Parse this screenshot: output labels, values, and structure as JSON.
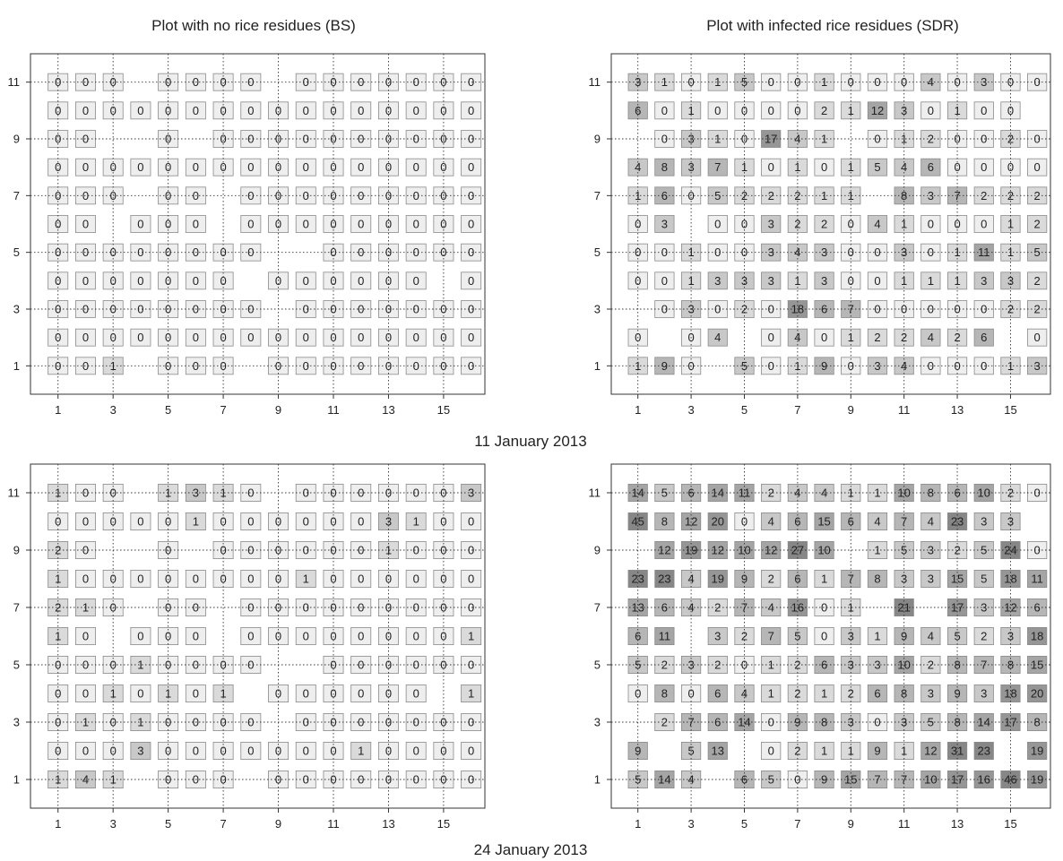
{
  "figure": {
    "titles": [
      "Plot with no rice residues (BS)",
      "Plot with infected rice residues (SDR)"
    ],
    "dates": [
      "11 January 2013",
      "24 January 2013"
    ]
  },
  "chart_data": [
    {
      "type": "heatmap",
      "title": "Plot with no rice residues (BS)",
      "date": "11 January 2013",
      "x_ticks": [
        1,
        3,
        5,
        7,
        9,
        11,
        13,
        15
      ],
      "y_ticks": [
        1,
        3,
        5,
        7,
        9,
        11
      ],
      "xlim": [
        0,
        16.5
      ],
      "ylim": [
        0,
        12
      ],
      "grid": "dotted lines at odd x and odd y",
      "cells": [
        {
          "y": 11,
          "values": [
            0,
            0,
            0,
            null,
            0,
            0,
            0,
            0,
            null,
            0,
            0,
            0,
            0,
            0,
            0,
            0
          ]
        },
        {
          "y": 10,
          "values": [
            0,
            0,
            0,
            0,
            0,
            0,
            0,
            0,
            0,
            0,
            0,
            0,
            0,
            0,
            0,
            0
          ]
        },
        {
          "y": 9,
          "values": [
            0,
            0,
            null,
            null,
            0,
            null,
            0,
            0,
            0,
            0,
            0,
            0,
            0,
            0,
            0,
            0
          ]
        },
        {
          "y": 8,
          "values": [
            0,
            0,
            0,
            0,
            0,
            0,
            0,
            0,
            0,
            0,
            0,
            0,
            0,
            0,
            0,
            0
          ]
        },
        {
          "y": 7,
          "values": [
            0,
            0,
            0,
            null,
            0,
            0,
            null,
            0,
            0,
            0,
            0,
            0,
            0,
            0,
            0,
            0
          ]
        },
        {
          "y": 6,
          "values": [
            0,
            0,
            null,
            0,
            0,
            0,
            null,
            0,
            0,
            0,
            0,
            0,
            0,
            0,
            0,
            0
          ]
        },
        {
          "y": 5,
          "values": [
            0,
            0,
            0,
            0,
            0,
            0,
            0,
            0,
            null,
            null,
            0,
            0,
            0,
            0,
            0,
            0
          ]
        },
        {
          "y": 4,
          "values": [
            0,
            0,
            0,
            0,
            0,
            0,
            0,
            null,
            0,
            0,
            0,
            0,
            0,
            0,
            null,
            0
          ]
        },
        {
          "y": 3,
          "values": [
            0,
            0,
            0,
            0,
            0,
            0,
            0,
            0,
            null,
            0,
            0,
            0,
            0,
            0,
            0,
            0
          ]
        },
        {
          "y": 2,
          "values": [
            0,
            0,
            0,
            0,
            0,
            0,
            0,
            0,
            0,
            0,
            0,
            0,
            0,
            0,
            0,
            0
          ]
        },
        {
          "y": 1,
          "values": [
            0,
            0,
            1,
            null,
            0,
            0,
            0,
            null,
            0,
            0,
            0,
            0,
            0,
            0,
            0,
            0
          ]
        }
      ]
    },
    {
      "type": "heatmap",
      "title": "Plot with infected rice residues (SDR)",
      "date": "11 January 2013",
      "x_ticks": [
        1,
        3,
        5,
        7,
        9,
        11,
        13,
        15
      ],
      "y_ticks": [
        1,
        3,
        5,
        7,
        9,
        11
      ],
      "xlim": [
        0,
        16.5
      ],
      "ylim": [
        0,
        12
      ],
      "grid": "dotted lines at odd x and odd y",
      "cells": [
        {
          "y": 11,
          "values": [
            3,
            1,
            0,
            1,
            5,
            0,
            0,
            1,
            0,
            0,
            0,
            4,
            0,
            3,
            0,
            0
          ]
        },
        {
          "y": 10,
          "values": [
            6,
            0,
            1,
            0,
            0,
            0,
            0,
            2,
            1,
            12,
            3,
            0,
            1,
            0,
            0,
            null
          ]
        },
        {
          "y": 9,
          "values": [
            null,
            0,
            3,
            1,
            0,
            17,
            4,
            1,
            null,
            0,
            1,
            2,
            0,
            0,
            2,
            0
          ]
        },
        {
          "y": 8,
          "values": [
            4,
            8,
            3,
            7,
            1,
            0,
            1,
            0,
            1,
            5,
            4,
            6,
            0,
            0,
            0,
            0
          ]
        },
        {
          "y": 7,
          "values": [
            1,
            6,
            0,
            5,
            2,
            2,
            2,
            1,
            1,
            null,
            8,
            3,
            7,
            2,
            2,
            2
          ]
        },
        {
          "y": 6,
          "values": [
            0,
            3,
            null,
            0,
            0,
            3,
            2,
            2,
            0,
            4,
            1,
            0,
            0,
            0,
            1,
            2
          ]
        },
        {
          "y": 5,
          "values": [
            0,
            0,
            1,
            0,
            0,
            3,
            4,
            3,
            0,
            0,
            3,
            0,
            1,
            11,
            1,
            5
          ]
        },
        {
          "y": 4,
          "values": [
            0,
            0,
            1,
            3,
            3,
            3,
            1,
            3,
            0,
            0,
            1,
            1,
            1,
            3,
            3,
            2
          ]
        },
        {
          "y": 3,
          "values": [
            null,
            0,
            3,
            0,
            2,
            0,
            18,
            6,
            7,
            0,
            0,
            0,
            0,
            0,
            2,
            2
          ]
        },
        {
          "y": 2,
          "values": [
            0,
            null,
            0,
            4,
            null,
            0,
            4,
            0,
            1,
            2,
            2,
            4,
            2,
            6,
            null,
            0
          ]
        },
        {
          "y": 1,
          "values": [
            1,
            9,
            0,
            null,
            5,
            0,
            1,
            9,
            0,
            3,
            4,
            0,
            0,
            0,
            1,
            3
          ]
        }
      ]
    },
    {
      "type": "heatmap",
      "title": "Plot with no rice residues (BS)",
      "date": "24 January 2013",
      "x_ticks": [
        1,
        3,
        5,
        7,
        9,
        11,
        13,
        15
      ],
      "y_ticks": [
        1,
        3,
        5,
        7,
        9,
        11
      ],
      "xlim": [
        0,
        16.5
      ],
      "ylim": [
        0,
        12
      ],
      "grid": "dotted lines at odd x and odd y",
      "cells": [
        {
          "y": 11,
          "values": [
            1,
            0,
            0,
            null,
            1,
            3,
            1,
            0,
            null,
            0,
            0,
            0,
            0,
            0,
            0,
            3
          ]
        },
        {
          "y": 10,
          "values": [
            0,
            0,
            0,
            0,
            0,
            1,
            0,
            0,
            0,
            0,
            0,
            0,
            3,
            1,
            0,
            0
          ]
        },
        {
          "y": 9,
          "values": [
            2,
            0,
            null,
            null,
            0,
            null,
            0,
            0,
            0,
            0,
            0,
            0,
            1,
            0,
            0,
            0
          ]
        },
        {
          "y": 8,
          "values": [
            1,
            0,
            0,
            0,
            0,
            0,
            0,
            0,
            0,
            1,
            0,
            0,
            0,
            0,
            0,
            0
          ]
        },
        {
          "y": 7,
          "values": [
            2,
            1,
            0,
            null,
            0,
            0,
            null,
            0,
            0,
            0,
            0,
            0,
            0,
            0,
            0,
            0
          ]
        },
        {
          "y": 6,
          "values": [
            1,
            0,
            null,
            0,
            0,
            0,
            null,
            0,
            0,
            0,
            0,
            0,
            0,
            0,
            0,
            1
          ]
        },
        {
          "y": 5,
          "values": [
            0,
            0,
            0,
            1,
            0,
            0,
            0,
            0,
            null,
            null,
            0,
            0,
            0,
            0,
            0,
            0
          ]
        },
        {
          "y": 4,
          "values": [
            0,
            0,
            1,
            0,
            1,
            0,
            1,
            null,
            0,
            0,
            0,
            0,
            0,
            0,
            null,
            1
          ]
        },
        {
          "y": 3,
          "values": [
            0,
            1,
            0,
            1,
            0,
            0,
            0,
            0,
            null,
            0,
            0,
            0,
            0,
            0,
            0,
            0
          ]
        },
        {
          "y": 2,
          "values": [
            0,
            0,
            0,
            3,
            0,
            0,
            0,
            0,
            0,
            0,
            0,
            1,
            0,
            0,
            0,
            0
          ]
        },
        {
          "y": 1,
          "values": [
            1,
            4,
            1,
            null,
            0,
            0,
            0,
            null,
            0,
            0,
            0,
            0,
            0,
            0,
            0,
            0
          ]
        }
      ]
    },
    {
      "type": "heatmap",
      "title": "Plot with infected rice residues (SDR)",
      "date": "24 January 2013",
      "x_ticks": [
        1,
        3,
        5,
        7,
        9,
        11,
        13,
        15
      ],
      "y_ticks": [
        1,
        3,
        5,
        7,
        9,
        11
      ],
      "xlim": [
        0,
        16.5
      ],
      "ylim": [
        0,
        12
      ],
      "grid": "dotted lines at odd x and odd y",
      "cells": [
        {
          "y": 11,
          "values": [
            14,
            5,
            6,
            14,
            11,
            2,
            4,
            4,
            1,
            1,
            10,
            8,
            6,
            10,
            2,
            0
          ]
        },
        {
          "y": 10,
          "values": [
            45,
            8,
            12,
            20,
            0,
            4,
            6,
            15,
            6,
            4,
            7,
            4,
            23,
            3,
            3,
            null
          ]
        },
        {
          "y": 9,
          "values": [
            null,
            12,
            19,
            12,
            10,
            12,
            27,
            10,
            null,
            1,
            5,
            3,
            2,
            5,
            24,
            0
          ]
        },
        {
          "y": 8,
          "values": [
            23,
            23,
            4,
            19,
            9,
            2,
            6,
            1,
            7,
            8,
            3,
            3,
            15,
            5,
            18,
            11
          ]
        },
        {
          "y": 7,
          "values": [
            13,
            6,
            4,
            2,
            7,
            4,
            16,
            0,
            1,
            null,
            21,
            null,
            17,
            3,
            12,
            6
          ]
        },
        {
          "y": 6,
          "values": [
            6,
            11,
            null,
            3,
            2,
            7,
            5,
            0,
            3,
            1,
            9,
            4,
            5,
            2,
            3,
            18
          ]
        },
        {
          "y": 5,
          "values": [
            5,
            2,
            3,
            2,
            0,
            1,
            2,
            6,
            3,
            3,
            10,
            2,
            8,
            7,
            8,
            15
          ]
        },
        {
          "y": 4,
          "values": [
            0,
            8,
            0,
            6,
            4,
            1,
            2,
            1,
            2,
            6,
            8,
            3,
            9,
            3,
            18,
            20
          ]
        },
        {
          "y": 3,
          "values": [
            null,
            2,
            7,
            6,
            14,
            0,
            9,
            8,
            3,
            0,
            3,
            5,
            8,
            14,
            17,
            8
          ]
        },
        {
          "y": 2,
          "values": [
            9,
            null,
            5,
            13,
            null,
            0,
            2,
            1,
            1,
            9,
            1,
            12,
            31,
            23,
            null,
            19
          ]
        },
        {
          "y": 1,
          "values": [
            5,
            14,
            4,
            null,
            6,
            5,
            0,
            9,
            15,
            7,
            7,
            10,
            17,
            16,
            46,
            19
          ]
        }
      ]
    }
  ]
}
